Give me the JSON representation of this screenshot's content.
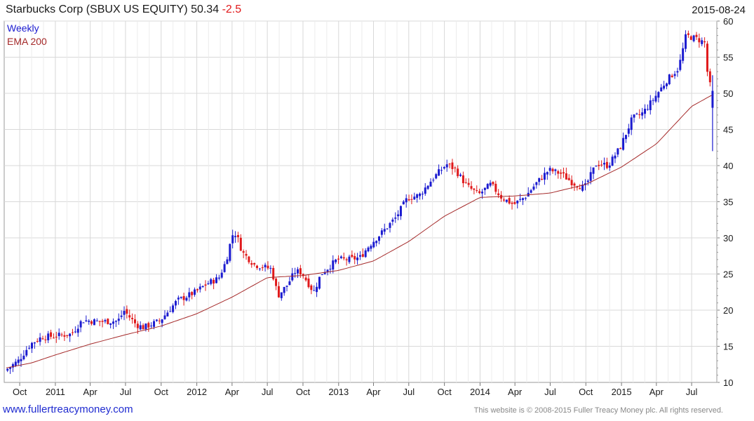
{
  "header": {
    "title_main": "Starbucks Corp (SBUX US EQUITY) 50.34",
    "title_change": "-2.5",
    "date": "2015-08-24"
  },
  "footer": {
    "site": "www.fullertreacymoney.com",
    "copyright": "This website is © 2008-2015 Fuller Treacy Money plc. All rights reserved."
  },
  "colors": {
    "up": "#1b1bd0",
    "down": "#e0191b",
    "ema": "#a52a2a",
    "grid": "#d8d8d8",
    "label_blue": "#1b1bd0"
  },
  "chart_data": {
    "type": "candlestick",
    "legend": [
      "Weekly",
      "EMA 200"
    ],
    "ylim": [
      10,
      60
    ],
    "yticks": [
      10,
      15,
      20,
      25,
      30,
      35,
      40,
      45,
      50,
      55,
      60
    ],
    "x_range": [
      "2010-08-22",
      "2015-09-04"
    ],
    "xticks": [
      {
        "label": "Oct",
        "date": "2010-10-01"
      },
      {
        "label": "2011",
        "date": "2011-01-01"
      },
      {
        "label": "Apr",
        "date": "2011-04-01"
      },
      {
        "label": "Jul",
        "date": "2011-07-01"
      },
      {
        "label": "Oct",
        "date": "2011-10-01"
      },
      {
        "label": "2012",
        "date": "2012-01-01"
      },
      {
        "label": "Apr",
        "date": "2012-04-01"
      },
      {
        "label": "Jul",
        "date": "2012-07-01"
      },
      {
        "label": "Oct",
        "date": "2012-10-01"
      },
      {
        "label": "2013",
        "date": "2013-01-01"
      },
      {
        "label": "Apr",
        "date": "2013-04-01"
      },
      {
        "label": "Jul",
        "date": "2013-07-01"
      },
      {
        "label": "Oct",
        "date": "2013-10-01"
      },
      {
        "label": "2014",
        "date": "2014-01-01"
      },
      {
        "label": "Apr",
        "date": "2014-04-01"
      },
      {
        "label": "Jul",
        "date": "2014-07-01"
      },
      {
        "label": "Oct",
        "date": "2014-10-01"
      },
      {
        "label": "2015",
        "date": "2015-01-01"
      },
      {
        "label": "Apr",
        "date": "2015-04-01"
      },
      {
        "label": "Jul",
        "date": "2015-07-01"
      }
    ],
    "price_path": [
      [
        "2010-08-27",
        11.6
      ],
      [
        "2010-10-01",
        13.0
      ],
      [
        "2010-11-01",
        15.3
      ],
      [
        "2010-12-01",
        16.3
      ],
      [
        "2011-01-01",
        16.4
      ],
      [
        "2011-02-15",
        16.7
      ],
      [
        "2011-03-15",
        18.6
      ],
      [
        "2011-05-01",
        18.4
      ],
      [
        "2011-06-15",
        18.5
      ],
      [
        "2011-07-01",
        19.9
      ],
      [
        "2011-08-01",
        18.0
      ],
      [
        "2011-08-20",
        17.6
      ],
      [
        "2011-10-01",
        18.5
      ],
      [
        "2011-11-15",
        21.3
      ],
      [
        "2012-01-01",
        22.5
      ],
      [
        "2012-02-01",
        23.7
      ],
      [
        "2012-03-01",
        24.4
      ],
      [
        "2012-03-20",
        26.8
      ],
      [
        "2012-04-05",
        30.4
      ],
      [
        "2012-04-15",
        30.6
      ],
      [
        "2012-05-01",
        28.0
      ],
      [
        "2012-06-01",
        26.3
      ],
      [
        "2012-07-15",
        25.7
      ],
      [
        "2012-08-01",
        22.0
      ],
      [
        "2012-08-25",
        23.5
      ],
      [
        "2012-09-15",
        25.4
      ],
      [
        "2012-10-01",
        25.2
      ],
      [
        "2012-11-01",
        22.5
      ],
      [
        "2012-11-20",
        25.0
      ],
      [
        "2013-01-01",
        27.0
      ],
      [
        "2013-02-01",
        27.0
      ],
      [
        "2013-03-01",
        27.3
      ],
      [
        "2013-03-25",
        29.0
      ],
      [
        "2013-05-01",
        31.0
      ],
      [
        "2013-06-01",
        32.8
      ],
      [
        "2013-07-01",
        35.5
      ],
      [
        "2013-08-01",
        35.9
      ],
      [
        "2013-09-01",
        38.0
      ],
      [
        "2013-10-10",
        40.2
      ],
      [
        "2013-11-01",
        39.5
      ],
      [
        "2013-12-01",
        37.2
      ],
      [
        "2014-01-01",
        36.0
      ],
      [
        "2014-02-01",
        37.4
      ],
      [
        "2014-03-01",
        35.6
      ],
      [
        "2014-04-01",
        34.6
      ],
      [
        "2014-05-01",
        35.7
      ],
      [
        "2014-06-01",
        37.7
      ],
      [
        "2014-07-01",
        39.4
      ],
      [
        "2014-08-01",
        38.9
      ],
      [
        "2014-09-01",
        37.6
      ],
      [
        "2014-10-01",
        36.9
      ],
      [
        "2014-11-01",
        40.3
      ],
      [
        "2014-12-01",
        40.0
      ],
      [
        "2015-01-01",
        42.5
      ],
      [
        "2015-02-01",
        46.5
      ],
      [
        "2015-03-01",
        47.3
      ],
      [
        "2015-04-01",
        49.5
      ],
      [
        "2015-05-01",
        51.8
      ],
      [
        "2015-06-01",
        53.5
      ],
      [
        "2015-06-20",
        58.0
      ],
      [
        "2015-07-20",
        57.5
      ],
      [
        "2015-08-07",
        57.0
      ],
      [
        "2015-08-14",
        53.0
      ],
      [
        "2015-08-24",
        50.3
      ]
    ],
    "weekly_candles_note": "Weekly OHLC bars; blue = up week, red = down week",
    "final_bar": {
      "date": "2015-08-24",
      "open": 48.0,
      "high": 52.5,
      "low": 42.0,
      "close": 50.34
    },
    "ema_path": [
      [
        "2010-08-27",
        12.0
      ],
      [
        "2010-11-01",
        12.7
      ],
      [
        "2011-01-01",
        13.8
      ],
      [
        "2011-04-01",
        15.3
      ],
      [
        "2011-07-01",
        16.6
      ],
      [
        "2011-10-01",
        17.8
      ],
      [
        "2012-01-01",
        19.5
      ],
      [
        "2012-04-01",
        21.8
      ],
      [
        "2012-07-01",
        24.5
      ],
      [
        "2012-10-01",
        24.8
      ],
      [
        "2013-01-01",
        25.5
      ],
      [
        "2013-04-01",
        26.8
      ],
      [
        "2013-07-01",
        29.5
      ],
      [
        "2013-10-01",
        33.0
      ],
      [
        "2014-01-01",
        35.6
      ],
      [
        "2014-04-01",
        35.8
      ],
      [
        "2014-07-01",
        36.2
      ],
      [
        "2014-10-01",
        37.4
      ],
      [
        "2015-01-01",
        39.8
      ],
      [
        "2015-04-01",
        43.0
      ],
      [
        "2015-07-01",
        48.2
      ],
      [
        "2015-08-24",
        49.8
      ]
    ]
  }
}
